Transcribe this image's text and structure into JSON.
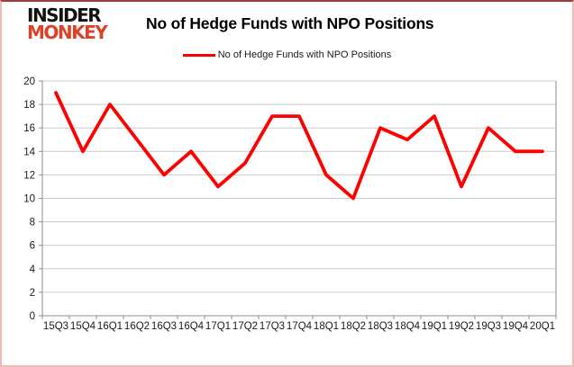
{
  "brand": {
    "line1": "INSIDER",
    "line2": "MONKEY"
  },
  "header": {
    "title": "No of Hedge Funds with NPO Positions"
  },
  "legend": {
    "label": "No of Hedge Funds with NPO Positions"
  },
  "colors": {
    "line": "#fe0000",
    "logo_red": "#dc4228",
    "gridline": "#c8c8c8",
    "axis": "#8c8c8c",
    "tick_text": "#1a1a1a",
    "frame_pink": "#f2b9b9",
    "frame_top": "#9e3b3b"
  },
  "chart_data": {
    "type": "line",
    "title": "No of Hedge Funds with NPO Positions",
    "series_name": "No of Hedge Funds with NPO Positions",
    "categories": [
      "15Q3",
      "15Q4",
      "16Q1",
      "16Q2",
      "16Q3",
      "16Q4",
      "17Q1",
      "17Q2",
      "17Q3",
      "17Q4",
      "18Q1",
      "18Q2",
      "18Q3",
      "18Q4",
      "19Q1",
      "19Q2",
      "19Q3",
      "19Q4",
      "20Q1"
    ],
    "values": [
      19,
      14,
      18,
      15,
      12,
      14,
      11,
      13,
      17,
      17,
      12,
      10,
      16,
      15,
      17,
      11,
      16,
      14,
      14
    ],
    "xlabel": "",
    "ylabel": "",
    "ylim": [
      0,
      20
    ],
    "yticks": [
      0,
      2,
      4,
      6,
      8,
      10,
      12,
      14,
      16,
      18,
      20
    ],
    "grid": true,
    "legend_position": "top",
    "line_color": "#fe0000"
  }
}
